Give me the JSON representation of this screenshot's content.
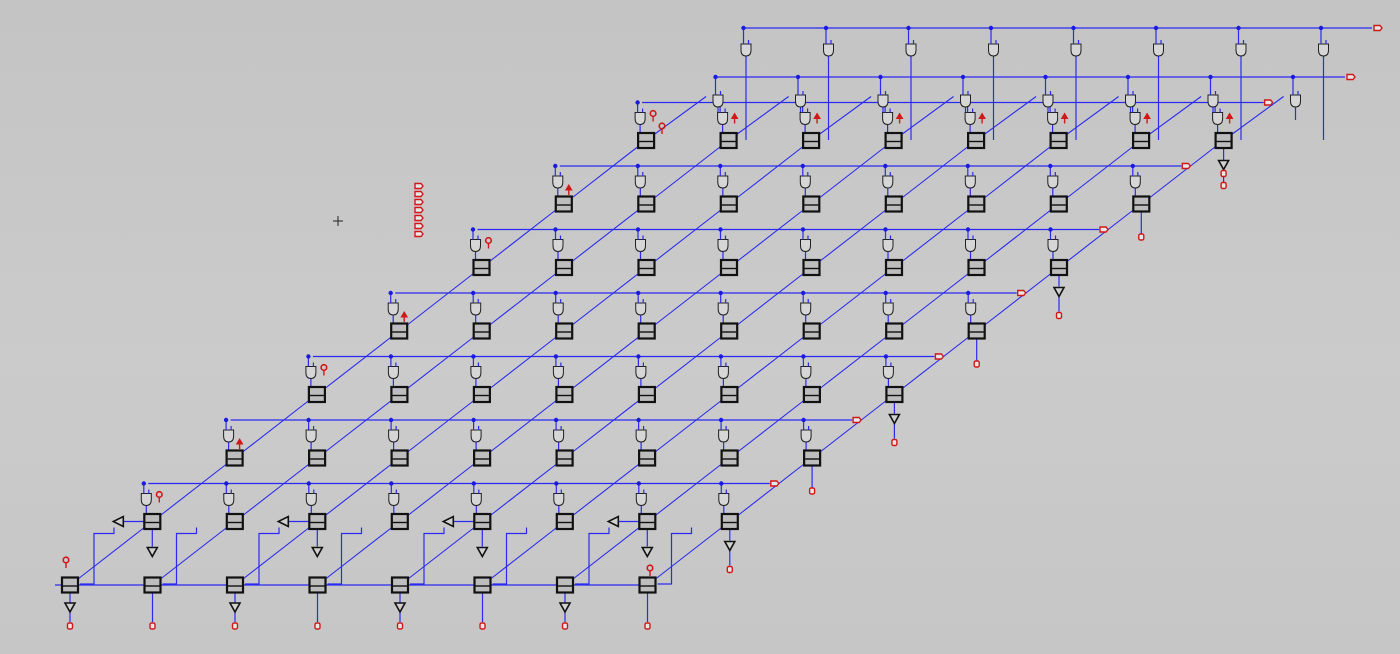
{
  "diagram": {
    "kind": "gate-level array schematic",
    "grid_rows": 8,
    "grid_columns": 8,
    "colors": {
      "wire": "#2a2af0",
      "component_outline": "#111111",
      "pin": "#d01818",
      "background": "#c9c9c9"
    },
    "icons": {
      "cell": "flip-flop-box-icon",
      "gate": "and-gate-icon",
      "buffer": "buffer-triangle-icon",
      "inverter": "inverter-icon",
      "input_pin": "input-pin-icon",
      "output_pin": "output-pin-icon",
      "cursor": "crosshair-cursor-icon"
    }
  }
}
